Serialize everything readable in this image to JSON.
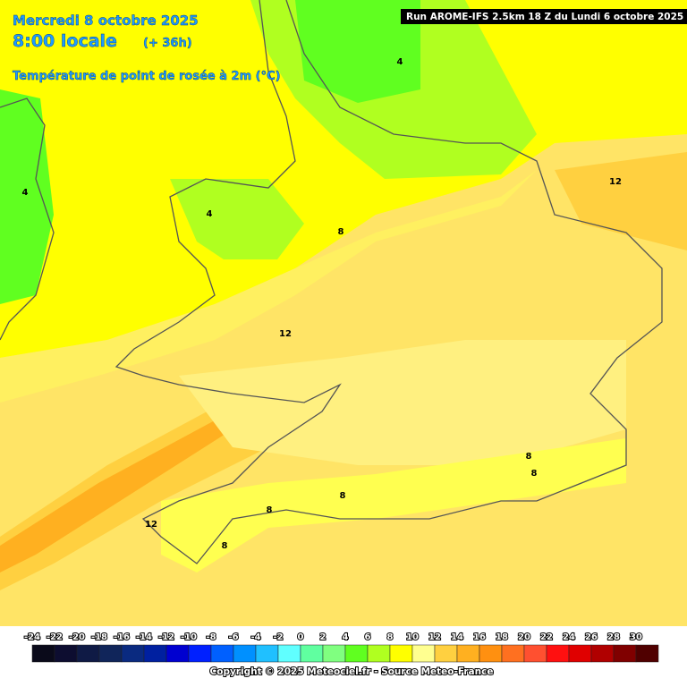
{
  "header": {
    "date": "Mercredi 8 octobre 2025",
    "time": "8:00 locale",
    "lead": "(+ 36h)",
    "parameter": "Température de point de rosée à 2m (°C)"
  },
  "run": "Run AROME-IFS 2.5km 18 Z du Lundi 6 octobre 2025",
  "contour_labels": [
    "4",
    "4",
    "4",
    "8",
    "12",
    "12",
    "8",
    "8",
    "8",
    "8",
    "12",
    "8"
  ],
  "legend": {
    "ticks": [
      -24,
      -22,
      -20,
      -18,
      -16,
      -14,
      -12,
      -10,
      -8,
      -6,
      -4,
      -2,
      0,
      2,
      4,
      6,
      8,
      10,
      12,
      14,
      16,
      18,
      20,
      22,
      24,
      26,
      28,
      30
    ],
    "colors": [
      "#0a0a1a",
      "#0d0d30",
      "#0f1a45",
      "#10255a",
      "#0a2a80",
      "#0020a0",
      "#0000d0",
      "#0020ff",
      "#0060ff",
      "#0090ff",
      "#20c0ff",
      "#60ffff",
      "#60ffa0",
      "#80ff80",
      "#60ff20",
      "#b0ff20",
      "#ffff00",
      "#ffff90",
      "#ffd040",
      "#ffb020",
      "#ff9010",
      "#ff7020",
      "#ff5030",
      "#ff1010",
      "#e00000",
      "#b00000",
      "#800000",
      "#500000"
    ]
  },
  "copyright": "Copyright © 2025 Meteociel.fr - Source Meteo-France"
}
